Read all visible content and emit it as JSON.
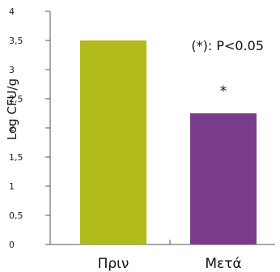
{
  "chart_data": {
    "type": "bar",
    "categories": [
      "Πριν",
      "Μετά"
    ],
    "values": [
      3.5,
      2.25
    ],
    "ylabel": "Log CFU/g",
    "ylim": [
      0,
      4
    ],
    "y_ticks": [
      "0",
      "0,5",
      "1",
      "1,5",
      "2",
      "2,5",
      "3",
      "3,5",
      "4"
    ],
    "annotation": "(*): P<0.05",
    "significance_marker": "*",
    "colors": [
      "#b2bb1c",
      "#7b3b8d"
    ],
    "grid": false
  }
}
